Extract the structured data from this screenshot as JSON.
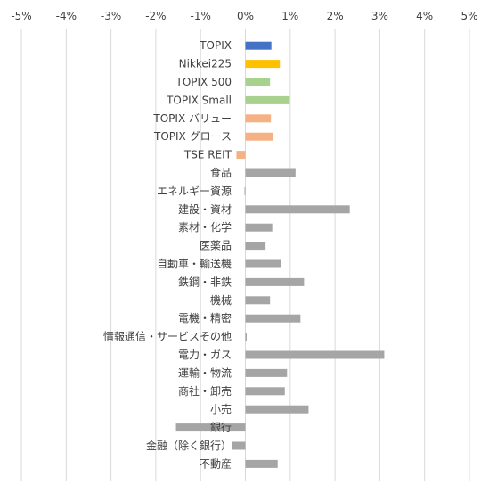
{
  "chart_data": {
    "type": "bar",
    "orientation": "horizontal",
    "xlim": [
      -5,
      5
    ],
    "x_ticks": [
      -5,
      -4,
      -3,
      -2,
      -1,
      0,
      1,
      2,
      3,
      4,
      5
    ],
    "x_tick_labels": [
      "-5%",
      "-4%",
      "-3%",
      "-2%",
      "-1%",
      "0%",
      "1%",
      "2%",
      "3%",
      "4%",
      "5%"
    ],
    "x_axis_position": "top",
    "grid": "vertical",
    "categories": [
      "TOPIX",
      "Nikkei225",
      "TOPIX 500",
      "TOPIX Small",
      "TOPIX バリュー",
      "TOPIX グロース",
      "TSE REIT",
      "食品",
      "エネルギー資源",
      "建設・資材",
      "素材・化学",
      "医薬品",
      "自動車・輸送機",
      "鉄鋼・非鉄",
      "機械",
      "電機・精密",
      "情報通信・サービスその他",
      "電力・ガス",
      "運輸・物流",
      "商社・卸売",
      "小売",
      "銀行",
      "金融（除く銀行）",
      "不動産"
    ],
    "values": [
      0.58,
      0.77,
      0.55,
      0.99,
      0.57,
      0.62,
      -0.2,
      1.12,
      -0.02,
      2.33,
      0.6,
      0.45,
      0.8,
      1.31,
      0.55,
      1.23,
      0.03,
      3.1,
      0.93,
      0.88,
      1.41,
      -1.55,
      -0.3,
      0.72
    ],
    "colors": [
      "#4472C4",
      "#FFC000",
      "#A9D18E",
      "#A9D18E",
      "#F4B183",
      "#F4B183",
      "#F4B183",
      "#A5A5A5",
      "#A5A5A5",
      "#A5A5A5",
      "#A5A5A5",
      "#A5A5A5",
      "#A5A5A5",
      "#A5A5A5",
      "#A5A5A5",
      "#A5A5A5",
      "#A5A5A5",
      "#A5A5A5",
      "#A5A5A5",
      "#A5A5A5",
      "#A5A5A5",
      "#A5A5A5",
      "#A5A5A5",
      "#A5A5A5"
    ],
    "gridline_color": "#D9D9D9",
    "label_color": "#404040"
  }
}
